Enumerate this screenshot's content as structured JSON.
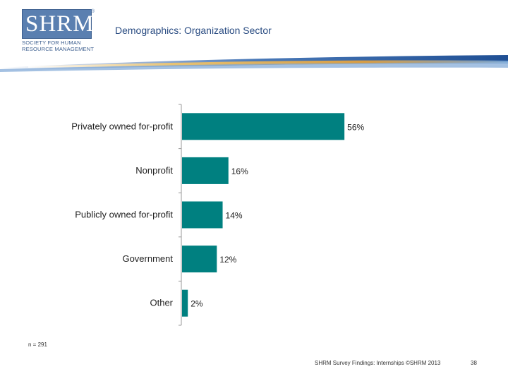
{
  "logo": {
    "main": "SHRM",
    "registered": "®",
    "subtitle": "SOCIETY FOR HUMAN RESOURCE MANAGEMENT"
  },
  "header": {
    "title": "Demographics: Organization Sector"
  },
  "colors": {
    "bar": "#008080",
    "axis": "#999999",
    "header_text": "#2a4c82",
    "logo_blue": "#5a7fb0"
  },
  "chart_data": {
    "type": "bar",
    "orientation": "horizontal",
    "categories": [
      "Privately owned for-profit",
      "Nonprofit",
      "Publicly owned for-profit",
      "Government",
      "Other"
    ],
    "values": [
      56,
      16,
      14,
      12,
      2
    ],
    "value_labels": [
      "56%",
      "16%",
      "14%",
      "12%",
      "2%"
    ],
    "xlim": [
      0,
      100
    ],
    "grid": false,
    "legend": "none"
  },
  "note": "n = 291",
  "footer": {
    "source": "SHRM Survey Findings: Internships ©SHRM 2013",
    "page": "38"
  }
}
